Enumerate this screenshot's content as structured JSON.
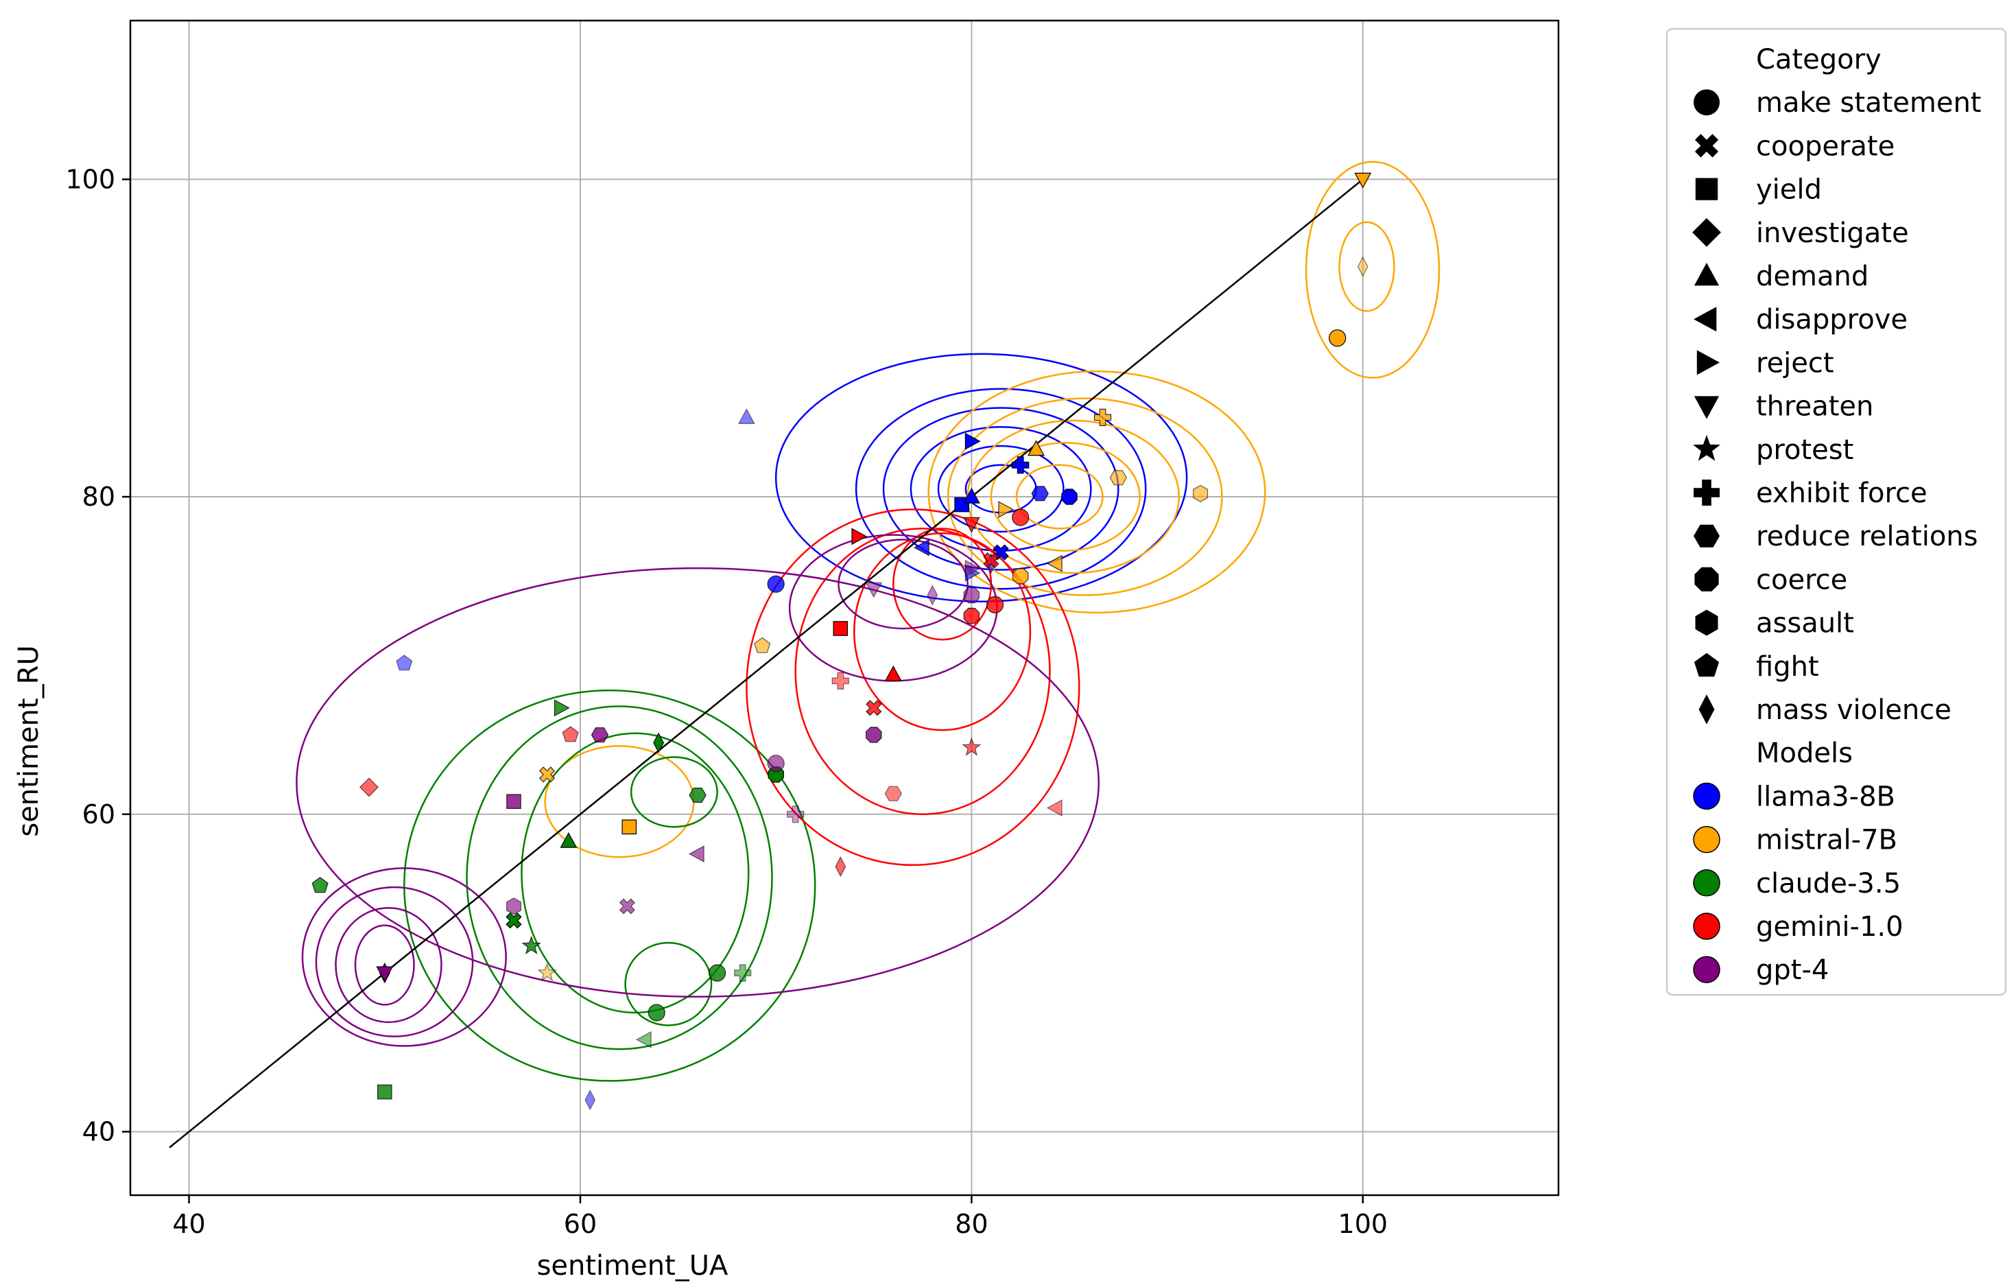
{
  "chart_data": {
    "type": "scatter",
    "title": "",
    "xlabel": "sentiment_UA",
    "ylabel": "sentiment_RU",
    "xlim": [
      37,
      110
    ],
    "ylim": [
      36,
      110
    ],
    "xticks": [
      40,
      60,
      80,
      100
    ],
    "yticks": [
      40,
      60,
      80,
      100
    ],
    "grid": true,
    "reference_line": {
      "x": [
        39,
        100
      ],
      "y": [
        39,
        100
      ]
    },
    "legend": {
      "placement": "outside-right",
      "category_title": "Category",
      "categories": [
        {
          "name": "make statement",
          "marker": "circle"
        },
        {
          "name": "cooperate",
          "marker": "x"
        },
        {
          "name": "yield",
          "marker": "square"
        },
        {
          "name": "investigate",
          "marker": "diamond"
        },
        {
          "name": "demand",
          "marker": "triangle-up"
        },
        {
          "name": "disapprove",
          "marker": "triangle-left"
        },
        {
          "name": "reject",
          "marker": "triangle-right"
        },
        {
          "name": "threaten",
          "marker": "triangle-down"
        },
        {
          "name": "protest",
          "marker": "star"
        },
        {
          "name": "exhibit force",
          "marker": "plus"
        },
        {
          "name": "reduce relations",
          "marker": "hexagon-flat"
        },
        {
          "name": "coerce",
          "marker": "octagon"
        },
        {
          "name": "assault",
          "marker": "hexagon"
        },
        {
          "name": "fight",
          "marker": "pentagon"
        },
        {
          "name": "mass violence",
          "marker": "thin-diamond"
        }
      ],
      "models_title": "Models",
      "models": [
        {
          "name": "llama3-8B",
          "color": "#0000ff"
        },
        {
          "name": "mistral-7B",
          "color": "#ffa500"
        },
        {
          "name": "claude-3.5",
          "color": "#008000"
        },
        {
          "name": "gemini-1.0",
          "color": "#ff0000"
        },
        {
          "name": "gpt-4",
          "color": "#800080"
        }
      ]
    },
    "series": [
      {
        "name": "llama3-8B",
        "color": "#0000ff",
        "points": [
          {
            "x": 70,
            "y": 74.5,
            "marker": "circle",
            "alpha": 0.8
          },
          {
            "x": 51,
            "y": 69.5,
            "marker": "pentagon",
            "alpha": 0.5
          },
          {
            "x": 68.5,
            "y": 85,
            "marker": "triangle-up",
            "alpha": 0.5
          },
          {
            "x": 60.5,
            "y": 42,
            "marker": "thin-diamond",
            "alpha": 0.5
          },
          {
            "x": 80,
            "y": 83.5,
            "marker": "triangle-right",
            "alpha": 1
          },
          {
            "x": 83.5,
            "y": 80.2,
            "marker": "hexagon-flat",
            "alpha": 0.8
          },
          {
            "x": 85,
            "y": 80,
            "marker": "octagon",
            "alpha": 1
          },
          {
            "x": 79.5,
            "y": 79.5,
            "marker": "square",
            "alpha": 1
          },
          {
            "x": 80,
            "y": 80,
            "marker": "triangle-up",
            "alpha": 1
          },
          {
            "x": 81.5,
            "y": 76.5,
            "marker": "x",
            "alpha": 1
          },
          {
            "x": 82.5,
            "y": 82,
            "marker": "plus",
            "alpha": 1
          },
          {
            "x": 77.5,
            "y": 76.8,
            "marker": "triangle-left",
            "alpha": 0.8
          },
          {
            "x": 80,
            "y": 75.2,
            "marker": "triangle-right",
            "alpha": 0.6
          },
          {
            "x": 81,
            "y": 75.8,
            "marker": "thin-diamond",
            "alpha": 0.6
          }
        ]
      },
      {
        "name": "mistral-7B",
        "color": "#ffa500",
        "points": [
          {
            "x": 100,
            "y": 100,
            "marker": "triangle-down",
            "alpha": 1
          },
          {
            "x": 100,
            "y": 94.5,
            "marker": "thin-diamond",
            "alpha": 0.5
          },
          {
            "x": 98.7,
            "y": 90,
            "marker": "circle",
            "alpha": 1
          },
          {
            "x": 86.7,
            "y": 85,
            "marker": "plus",
            "alpha": 0.8
          },
          {
            "x": 87.5,
            "y": 81.2,
            "marker": "hexagon-flat",
            "alpha": 0.6
          },
          {
            "x": 91.7,
            "y": 80.2,
            "marker": "hexagon",
            "alpha": 0.6
          },
          {
            "x": 83.3,
            "y": 83,
            "marker": "triangle-up",
            "alpha": 1
          },
          {
            "x": 81.7,
            "y": 79.2,
            "marker": "triangle-right",
            "alpha": 0.8
          },
          {
            "x": 84.3,
            "y": 75.8,
            "marker": "triangle-left",
            "alpha": 0.8
          },
          {
            "x": 82.5,
            "y": 75,
            "marker": "octagon",
            "alpha": 0.8
          },
          {
            "x": 69.3,
            "y": 70.6,
            "marker": "pentagon",
            "alpha": 0.6
          },
          {
            "x": 62.5,
            "y": 59.2,
            "marker": "square",
            "alpha": 1
          },
          {
            "x": 58.3,
            "y": 62.5,
            "marker": "x",
            "alpha": 0.8
          },
          {
            "x": 58.3,
            "y": 50,
            "marker": "star",
            "alpha": 0.5
          }
        ]
      },
      {
        "name": "claude-3.5",
        "color": "#008000",
        "points": [
          {
            "x": 59,
            "y": 66.7,
            "marker": "triangle-right",
            "alpha": 0.8
          },
          {
            "x": 64,
            "y": 64.5,
            "marker": "thin-diamond",
            "alpha": 1
          },
          {
            "x": 66,
            "y": 61.2,
            "marker": "hexagon-flat",
            "alpha": 0.8
          },
          {
            "x": 70,
            "y": 62.5,
            "marker": "octagon",
            "alpha": 1
          },
          {
            "x": 59.4,
            "y": 58.3,
            "marker": "triangle-up",
            "alpha": 1
          },
          {
            "x": 56.6,
            "y": 53.3,
            "marker": "x",
            "alpha": 1
          },
          {
            "x": 57.5,
            "y": 51.7,
            "marker": "star",
            "alpha": 0.8
          },
          {
            "x": 67,
            "y": 50,
            "marker": "circle",
            "alpha": 0.8
          },
          {
            "x": 68.3,
            "y": 50,
            "marker": "plus",
            "alpha": 0.5
          },
          {
            "x": 63.9,
            "y": 47.5,
            "marker": "circle",
            "alpha": 0.8
          },
          {
            "x": 63.3,
            "y": 45.8,
            "marker": "triangle-left",
            "alpha": 0.5
          },
          {
            "x": 46.7,
            "y": 55.5,
            "marker": "pentagon",
            "alpha": 0.8
          },
          {
            "x": 50,
            "y": 42.5,
            "marker": "square",
            "alpha": 0.8
          },
          {
            "x": 50,
            "y": 50,
            "marker": "thin-diamond",
            "alpha": 1
          }
        ]
      },
      {
        "name": "gemini-1.0",
        "color": "#ff0000",
        "points": [
          {
            "x": 73.3,
            "y": 71.7,
            "marker": "square",
            "alpha": 1
          },
          {
            "x": 74.2,
            "y": 77.5,
            "marker": "triangle-right",
            "alpha": 1
          },
          {
            "x": 76,
            "y": 68.8,
            "marker": "triangle-up",
            "alpha": 1
          },
          {
            "x": 75,
            "y": 66.7,
            "marker": "x",
            "alpha": 0.8
          },
          {
            "x": 73.3,
            "y": 68.4,
            "marker": "plus",
            "alpha": 0.5
          },
          {
            "x": 76,
            "y": 61.3,
            "marker": "hexagon-flat",
            "alpha": 0.5
          },
          {
            "x": 73.3,
            "y": 56.7,
            "marker": "thin-diamond",
            "alpha": 0.6
          },
          {
            "x": 80,
            "y": 64.2,
            "marker": "star",
            "alpha": 0.6
          },
          {
            "x": 84.3,
            "y": 60.4,
            "marker": "triangle-left",
            "alpha": 0.5
          },
          {
            "x": 80,
            "y": 72.5,
            "marker": "octagon",
            "alpha": 0.8
          },
          {
            "x": 81.2,
            "y": 73.2,
            "marker": "circle",
            "alpha": 0.8
          },
          {
            "x": 82.5,
            "y": 78.7,
            "marker": "circle",
            "alpha": 0.8
          },
          {
            "x": 80,
            "y": 78.3,
            "marker": "triangle-down",
            "alpha": 0.8
          },
          {
            "x": 81,
            "y": 76,
            "marker": "x",
            "alpha": 0.8
          },
          {
            "x": 49.2,
            "y": 61.7,
            "marker": "diamond",
            "alpha": 0.6
          },
          {
            "x": 59.5,
            "y": 65,
            "marker": "pentagon",
            "alpha": 0.6
          }
        ]
      },
      {
        "name": "gpt-4",
        "color": "#800080",
        "points": [
          {
            "x": 50,
            "y": 50,
            "marker": "triangle-down",
            "alpha": 1
          },
          {
            "x": 56.6,
            "y": 60.8,
            "marker": "square",
            "alpha": 0.8
          },
          {
            "x": 56.6,
            "y": 54.2,
            "marker": "hexagon",
            "alpha": 0.6
          },
          {
            "x": 61,
            "y": 65,
            "marker": "hexagon-flat",
            "alpha": 0.8
          },
          {
            "x": 62.4,
            "y": 54.2,
            "marker": "x",
            "alpha": 0.6
          },
          {
            "x": 66,
            "y": 57.5,
            "marker": "triangle-left",
            "alpha": 0.6
          },
          {
            "x": 70,
            "y": 63.2,
            "marker": "circle",
            "alpha": 0.6
          },
          {
            "x": 75,
            "y": 65,
            "marker": "octagon",
            "alpha": 0.8
          },
          {
            "x": 75,
            "y": 74.2,
            "marker": "triangle-down",
            "alpha": 0.5
          },
          {
            "x": 71,
            "y": 60,
            "marker": "plus",
            "alpha": 0.4
          },
          {
            "x": 80,
            "y": 73.8,
            "marker": "octagon",
            "alpha": 0.6
          },
          {
            "x": 78,
            "y": 73.8,
            "marker": "thin-diamond",
            "alpha": 0.5
          },
          {
            "x": 80,
            "y": 75.5,
            "marker": "triangle-right",
            "alpha": 0.5
          }
        ]
      }
    ],
    "density_contours": [
      {
        "model": "llama3-8B",
        "color": "#0000ff",
        "rings": [
          {
            "cx": 81.5,
            "cy": 80.5,
            "rx": 1.8,
            "ry": 1.5
          },
          {
            "cx": 81.5,
            "cy": 80.5,
            "rx": 3.2,
            "ry": 2.7
          },
          {
            "cx": 81.5,
            "cy": 80.5,
            "rx": 4.6,
            "ry": 3.9
          },
          {
            "cx": 81.5,
            "cy": 80.5,
            "rx": 6.0,
            "ry": 5.1
          },
          {
            "cx": 81.5,
            "cy": 80.5,
            "rx": 7.4,
            "ry": 6.3
          },
          {
            "cx": 80.5,
            "cy": 81.2,
            "rx": 10.5,
            "ry": 7.8
          }
        ]
      },
      {
        "model": "mistral-7B",
        "color": "#ffa500",
        "rings": [
          {
            "cx": 84.5,
            "cy": 80,
            "rx": 2.2,
            "ry": 2.0
          },
          {
            "cx": 84.8,
            "cy": 80,
            "rx": 3.8,
            "ry": 3.4
          },
          {
            "cx": 85.2,
            "cy": 80,
            "rx": 5.4,
            "ry": 4.8
          },
          {
            "cx": 85.8,
            "cy": 80,
            "rx": 7.0,
            "ry": 6.2
          },
          {
            "cx": 86.4,
            "cy": 80.3,
            "rx": 8.6,
            "ry": 7.6
          },
          {
            "cx": 100.2,
            "cy": 94.5,
            "rx": 1.4,
            "ry": 2.8
          },
          {
            "cx": 100.5,
            "cy": 94.3,
            "rx": 3.4,
            "ry": 6.8
          },
          {
            "cx": 62,
            "cy": 60.8,
            "rx": 3.8,
            "ry": 3.5
          }
        ]
      },
      {
        "model": "claude-3.5",
        "color": "#008000",
        "rings": [
          {
            "cx": 64.8,
            "cy": 61.4,
            "rx": 2.2,
            "ry": 2.2
          },
          {
            "cx": 64.5,
            "cy": 49.3,
            "rx": 2.2,
            "ry": 2.6
          },
          {
            "cx": 62.8,
            "cy": 56.3,
            "rx": 5.8,
            "ry": 8.8
          },
          {
            "cx": 62.0,
            "cy": 56.0,
            "rx": 7.8,
            "ry": 10.8
          },
          {
            "cx": 61.5,
            "cy": 55.5,
            "rx": 10.5,
            "ry": 12.3
          }
        ]
      },
      {
        "model": "gemini-1.0",
        "color": "#ff0000",
        "rings": [
          {
            "cx": 78.5,
            "cy": 74.5,
            "rx": 2.5,
            "ry": 3.5
          },
          {
            "cx": 78.5,
            "cy": 71.5,
            "rx": 4.5,
            "ry": 6.2
          },
          {
            "cx": 77.5,
            "cy": 69.0,
            "rx": 6.5,
            "ry": 9.0
          },
          {
            "cx": 77.0,
            "cy": 68.0,
            "rx": 8.5,
            "ry": 11.2
          }
        ]
      },
      {
        "model": "gpt-4",
        "color": "#800080",
        "rings": [
          {
            "cx": 50,
            "cy": 50.5,
            "rx": 1.5,
            "ry": 2.5
          },
          {
            "cx": 50.2,
            "cy": 50.5,
            "rx": 2.7,
            "ry": 3.6
          },
          {
            "cx": 50.5,
            "cy": 50.7,
            "rx": 4.0,
            "ry": 4.7
          },
          {
            "cx": 51,
            "cy": 51,
            "rx": 5.2,
            "ry": 5.6
          },
          {
            "cx": 76.5,
            "cy": 74.5,
            "rx": 3.3,
            "ry": 2.8
          },
          {
            "cx": 76.0,
            "cy": 73.0,
            "rx": 5.3,
            "ry": 4.6
          },
          {
            "cx": 66,
            "cy": 62,
            "rx": 20.5,
            "ry": 13.5
          }
        ]
      }
    ]
  }
}
